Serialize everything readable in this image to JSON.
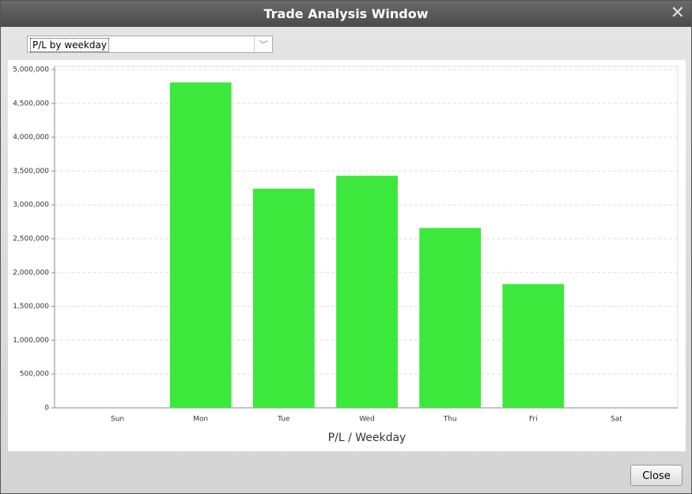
{
  "window": {
    "title": "Trade Analysis Window",
    "dropdown": "P/L by weekday",
    "close_button": "Close"
  },
  "chart_data": {
    "type": "bar",
    "x_label": "P/L / Weekday",
    "categories": [
      "Sun",
      "Mon",
      "Tue",
      "Wed",
      "Thu",
      "Fri",
      "Sat"
    ],
    "values": [
      0,
      4810000,
      3240000,
      3430000,
      2660000,
      1830000,
      0
    ],
    "color": "#3de83d",
    "ylim": [
      0,
      5000000
    ],
    "yticks": [
      0,
      {
        "value": 500000,
        "label": "500,000"
      },
      {
        "value": 1000000,
        "label": "1,000,000"
      },
      {
        "value": 1500000,
        "label": "1,500,000"
      },
      {
        "value": 2000000,
        "label": "2,000,000"
      },
      {
        "value": 2500000,
        "label": "2,500,000"
      },
      {
        "value": 3000000,
        "label": "3,000,000"
      },
      {
        "value": 3500000,
        "label": "3,500,000"
      },
      {
        "value": 4000000,
        "label": "4,000,000"
      },
      {
        "value": 4500000,
        "label": "4,500,000"
      },
      {
        "value": 5000000,
        "label": "5,000,000"
      }
    ],
    "grid": true
  }
}
